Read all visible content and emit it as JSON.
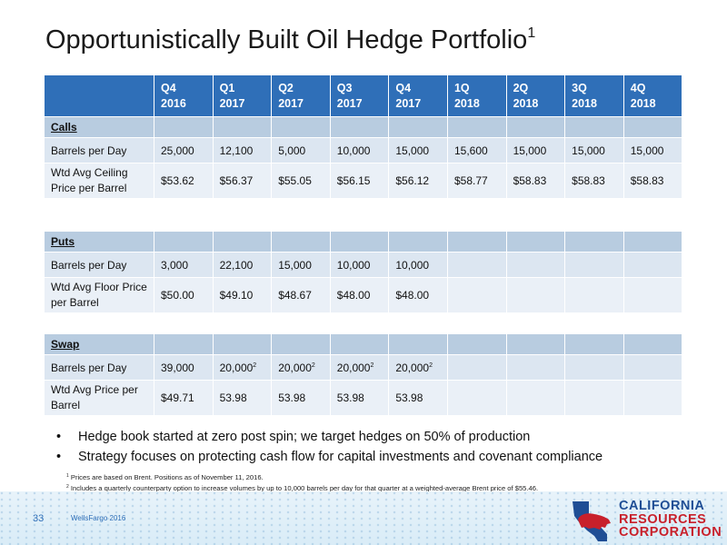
{
  "title": "Opportunistically Built Oil Hedge Portfolio",
  "title_sup": "1",
  "header": [
    [
      "Q4",
      "2016"
    ],
    [
      "Q1",
      "2017"
    ],
    [
      "Q2",
      "2017"
    ],
    [
      "Q3",
      "2017"
    ],
    [
      "Q4",
      "2017"
    ],
    [
      "1Q",
      "2018"
    ],
    [
      "2Q",
      "2018"
    ],
    [
      "3Q",
      "2018"
    ],
    [
      "4Q",
      "2018"
    ]
  ],
  "calls": {
    "label": "Calls",
    "barrels_label": "Barrels per Day",
    "barrels": [
      "25,000",
      "12,100",
      "5,000",
      "10,000",
      "15,000",
      "15,600",
      "15,000",
      "15,000",
      "15,000"
    ],
    "price_label": "Wtd Avg Ceiling Price per Barrel",
    "price": [
      "$53.62",
      "$56.37",
      "$55.05",
      "$56.15",
      "$56.12",
      "$58.77",
      "$58.83",
      "$58.83",
      "$58.83"
    ]
  },
  "puts": {
    "label": "Puts",
    "barrels_label": "Barrels per Day",
    "barrels": [
      "3,000",
      "22,100",
      "15,000",
      "10,000",
      "10,000",
      "",
      "",
      "",
      ""
    ],
    "price_label": "Wtd Avg Floor Price per Barrel",
    "price": [
      "$50.00",
      "$49.10",
      "$48.67",
      "$48.00",
      "$48.00",
      "",
      "",
      "",
      ""
    ]
  },
  "swap": {
    "label": "Swap",
    "barrels_label": "Barrels per Day",
    "barrels": [
      "39,000",
      "20,000",
      "20,000",
      "20,000",
      "20,000",
      "",
      "",
      "",
      ""
    ],
    "barrels_sup": [
      "",
      "2",
      "2",
      "2",
      "2",
      "",
      "",
      "",
      ""
    ],
    "price_label": "Wtd Avg Price per Barrel",
    "price": [
      "$49.71",
      "53.98",
      "53.98",
      "53.98",
      "53.98",
      "",
      "",
      "",
      ""
    ]
  },
  "bullets": [
    "Hedge book started at zero post spin; we target hedges on 50% of production",
    "Strategy focuses on protecting cash flow for capital investments and covenant compliance"
  ],
  "footnotes": [
    {
      "num": "1",
      "text": "Prices are based on Brent.  Positions as of November 11, 2016."
    },
    {
      "num": "2",
      "text": "Includes a quarterly counterparty option to increase volumes by up to 10,000 barrels per day for that quarter at a weighted-average Brent price of $55.46."
    }
  ],
  "page_number": "33",
  "event": "WellsFargo 2016",
  "logo": {
    "line1": "CALIFORNIA",
    "line2": "RESOURCES",
    "line3": "CORPORATION"
  },
  "colors": {
    "header_blue": "#2f6fb8",
    "section": "#b8cce0",
    "row_light": "#dce6f1",
    "logo_blue": "#1f4e95",
    "logo_red": "#c8202b"
  }
}
